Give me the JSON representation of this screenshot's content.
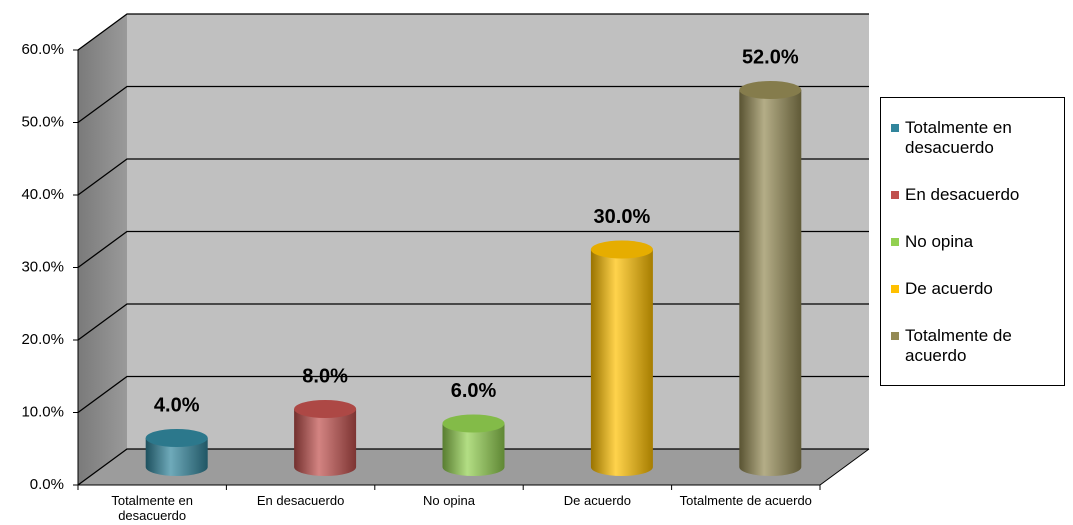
{
  "chart_data": {
    "type": "bar3d",
    "categories": [
      "Totalmente en desacuerdo",
      "En desacuerdo",
      "No opina",
      "De acuerdo",
      "Totalmente de acuerdo"
    ],
    "values": [
      4,
      8,
      6,
      30,
      52
    ],
    "value_labels": [
      "4.0%",
      "8.0%",
      "6.0%",
      "30.0%",
      "52.0%"
    ],
    "colors": [
      "#31859c",
      "#c0504d",
      "#92d050",
      "#ffc000",
      "#948a54"
    ],
    "ylim": [
      0,
      60
    ],
    "yticks": [
      {
        "value": 0,
        "label": "0.0%"
      },
      {
        "value": 10,
        "label": "10.0%"
      },
      {
        "value": 20,
        "label": "20.0%"
      },
      {
        "value": 30,
        "label": "30.0%"
      },
      {
        "value": 40,
        "label": "40.0%"
      },
      {
        "value": 50,
        "label": "50.0%"
      },
      {
        "value": 60,
        "label": "60.0%"
      }
    ],
    "grid": true,
    "legend": "right"
  }
}
